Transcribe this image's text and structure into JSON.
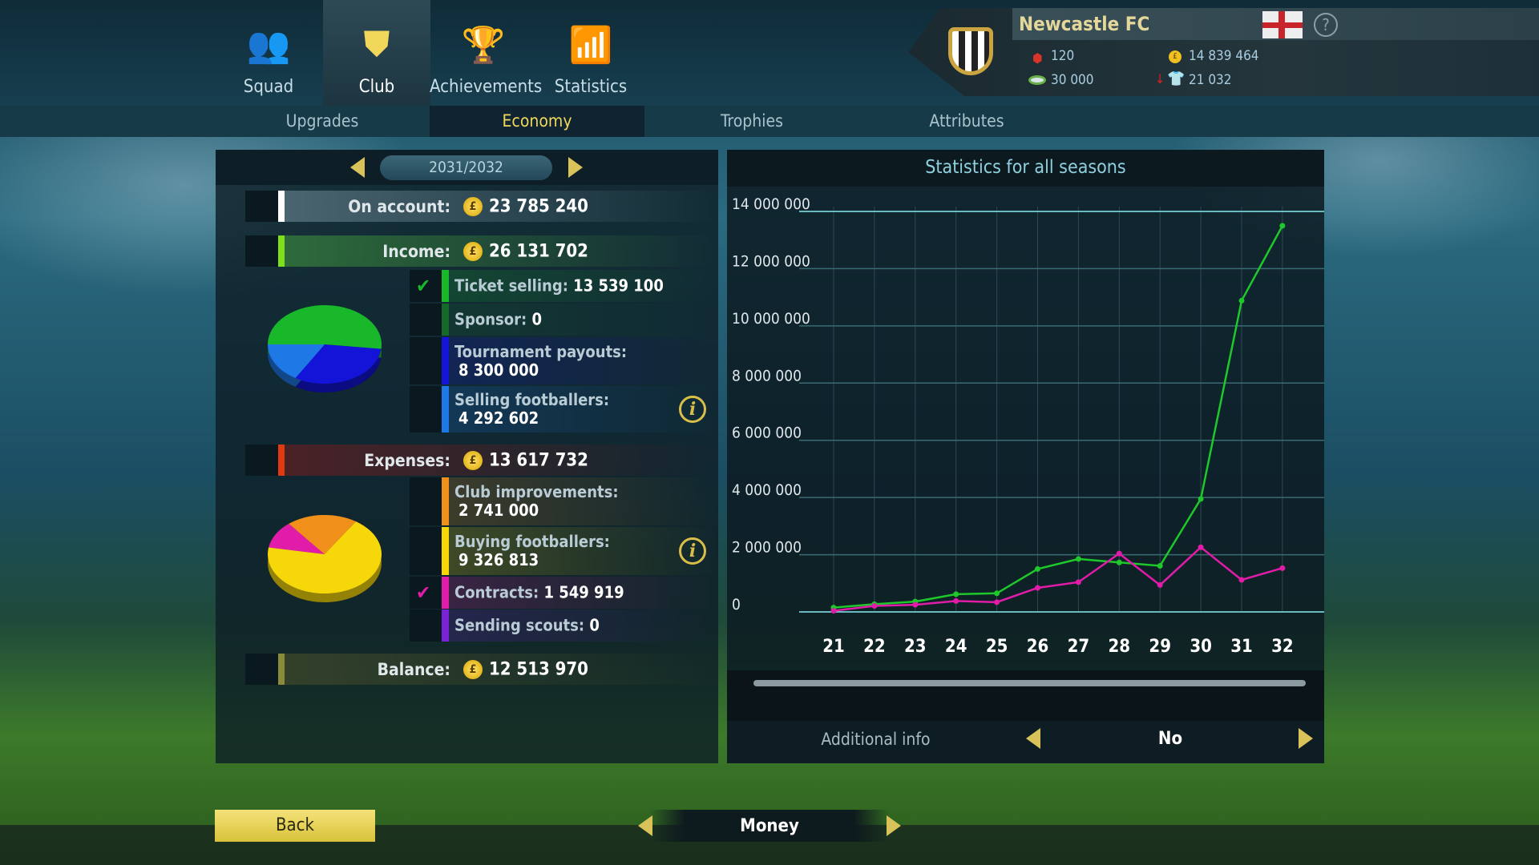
{
  "nav": {
    "tabs": [
      {
        "label": "Squad",
        "icon": "squad-icon"
      },
      {
        "label": "Club",
        "icon": "shield-icon",
        "active": true
      },
      {
        "label": "Achievements",
        "icon": "trophy-icon"
      },
      {
        "label": "Statistics",
        "icon": "bar-chart-icon"
      }
    ],
    "subtabs": [
      {
        "label": "Upgrades"
      },
      {
        "label": "Economy",
        "active": true
      },
      {
        "label": "Trophies"
      },
      {
        "label": "Attributes"
      }
    ]
  },
  "club": {
    "name": "Newcastle FC",
    "flag": "england-flag",
    "reputation": "120",
    "money": "14 839 464",
    "stadium": "30 000",
    "fans": "21 032",
    "fans_trend": "down"
  },
  "economy": {
    "season": "2031/2032",
    "on_account": {
      "label": "On account:",
      "value": "23 785 240"
    },
    "income": {
      "label": "Income:",
      "value": "26 131 702",
      "items": [
        {
          "label": "Ticket selling:",
          "value": "13 539 100",
          "color": "#19b82a",
          "checked": true,
          "amount": 13539100
        },
        {
          "label": "Sponsor:",
          "value": "0",
          "color": "#156a2a",
          "amount": 0
        },
        {
          "label": "Tournament payouts:",
          "value": "8 300 000",
          "color": "#1414d8",
          "amount": 8300000
        },
        {
          "label": "Selling footballers:",
          "value": "4 292 602",
          "color": "#1e78e6",
          "amount": 4292602
        }
      ]
    },
    "expenses": {
      "label": "Expenses:",
      "value": "13 617 732",
      "items": [
        {
          "label": "Club improvements:",
          "value": "2 741 000",
          "color": "#f0901a",
          "amount": 2741000
        },
        {
          "label": "Buying footballers:",
          "value": "9 326 813",
          "color": "#f6d80a",
          "amount": 9326813
        },
        {
          "label": "Contracts:",
          "value": "1 549 919",
          "color": "#e01ca8",
          "checked": true,
          "amount": 1549919
        },
        {
          "label": "Sending scouts:",
          "value": "0",
          "color": "#7a22d8",
          "amount": 0
        }
      ]
    },
    "balance": {
      "label": "Balance:",
      "value": "12 513 970"
    },
    "colors": {
      "on_account": "#ffffff",
      "income": "#7ee01a",
      "expenses": "#e03a10",
      "balance": "#8a8a3a"
    }
  },
  "chart_data": {
    "type": "line",
    "title": "Statistics for all seasons",
    "categories": [
      "21",
      "22",
      "23",
      "24",
      "25",
      "26",
      "27",
      "28",
      "29",
      "30",
      "31",
      "32"
    ],
    "yticks": [
      "0",
      "2 000 000",
      "4 000 000",
      "6 000 000",
      "8 000 000",
      "10 000 000",
      "12 000 000",
      "14 000 000"
    ],
    "ylim": [
      0,
      14000000
    ],
    "grid": true,
    "series": [
      {
        "color": "#1fc82a",
        "values": [
          150000,
          270000,
          360000,
          620000,
          650000,
          1500000,
          1850000,
          1730000,
          1610000,
          3950000,
          10880000,
          13500000
        ]
      },
      {
        "color": "#e01ca8",
        "values": [
          40000,
          210000,
          250000,
          380000,
          340000,
          840000,
          1040000,
          2040000,
          940000,
          2260000,
          1120000,
          1530000
        ]
      }
    ]
  },
  "additional": {
    "label": "Additional info",
    "value": "No"
  },
  "footer": {
    "back": "Back",
    "mode": "Money"
  }
}
